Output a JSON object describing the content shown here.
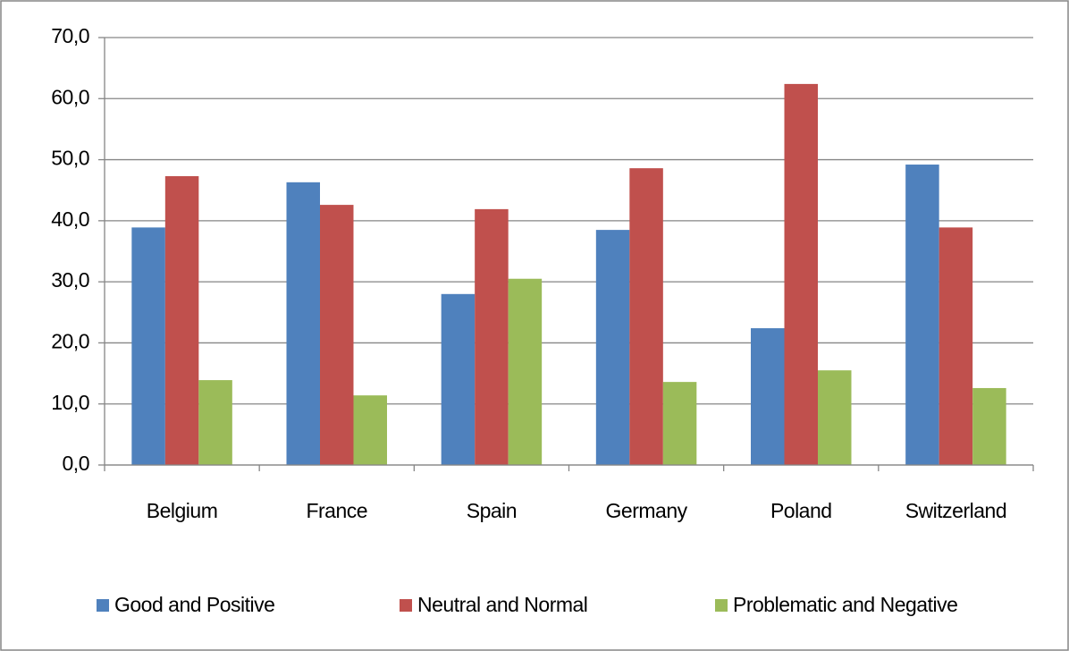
{
  "chart_data": {
    "type": "bar",
    "categories": [
      "Belgium",
      "France",
      "Spain",
      "Germany",
      "Poland",
      "Switzerland"
    ],
    "series": [
      {
        "name": "Good and Positive",
        "color": "#4f81bd",
        "values": [
          38.9,
          46.3,
          28.0,
          38.5,
          22.4,
          49.2
        ]
      },
      {
        "name": "Neutral and Normal",
        "color": "#c0504d",
        "values": [
          47.3,
          42.6,
          41.9,
          48.6,
          62.4,
          38.9
        ]
      },
      {
        "name": "Problematic and Negative",
        "color": "#9bbb59",
        "values": [
          13.9,
          11.4,
          30.5,
          13.6,
          15.5,
          12.6
        ]
      }
    ],
    "ylim": [
      0,
      70
    ],
    "yticks": [
      {
        "value": 0,
        "label": "0,0"
      },
      {
        "value": 10,
        "label": "10,0"
      },
      {
        "value": 20,
        "label": "20,0"
      },
      {
        "value": 30,
        "label": "30,0"
      },
      {
        "value": 40,
        "label": "40,0"
      },
      {
        "value": 50,
        "label": "50,0"
      },
      {
        "value": 60,
        "label": "60,0"
      },
      {
        "value": 70,
        "label": "70,0"
      }
    ],
    "grid": true,
    "legend": "bottom"
  }
}
